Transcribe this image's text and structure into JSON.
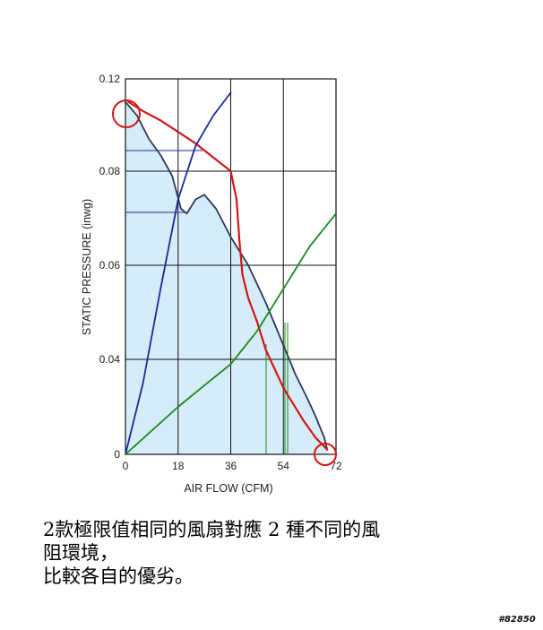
{
  "chart_data": {
    "type": "line",
    "xlabel": "AIR FLOW (CFM)",
    "ylabel": "STATIC PRESSURE (inwg)",
    "x_ticks": [
      "0",
      "18",
      "36",
      "54",
      "72"
    ],
    "y_ticks": [
      "0",
      "0.04",
      "0.06",
      "0.08",
      "0.12"
    ],
    "xlim": [
      0,
      72
    ],
    "ylim": [
      0,
      0.12
    ],
    "grid": true,
    "series": [
      {
        "color": "#2a3a55",
        "fill": "#d6ecf8",
        "points": [
          [
            0,
            0.11
          ],
          [
            4,
            0.104
          ],
          [
            8,
            0.094
          ],
          [
            12,
            0.087
          ],
          [
            16,
            0.079
          ],
          [
            19,
            0.072
          ],
          [
            21,
            0.071
          ],
          [
            24,
            0.074
          ],
          [
            27,
            0.075
          ],
          [
            31,
            0.072
          ],
          [
            36,
            0.066
          ],
          [
            42,
            0.06
          ],
          [
            48,
            0.052
          ],
          [
            54,
            0.043
          ],
          [
            58,
            0.034
          ],
          [
            62,
            0.024
          ],
          [
            65,
            0.016
          ],
          [
            68,
            0.007
          ],
          [
            69,
            0.002
          ]
        ]
      },
      {
        "color": "#d01818",
        "points": [
          [
            1,
            0.11
          ],
          [
            6,
            0.106
          ],
          [
            12,
            0.102
          ],
          [
            18,
            0.097
          ],
          [
            24,
            0.092
          ],
          [
            30,
            0.086
          ],
          [
            36,
            0.08
          ],
          [
            38,
            0.074
          ],
          [
            39,
            0.065
          ],
          [
            40,
            0.058
          ],
          [
            42,
            0.053
          ],
          [
            45,
            0.048
          ],
          [
            48,
            0.042
          ],
          [
            51,
            0.036
          ],
          [
            54,
            0.028
          ],
          [
            57,
            0.022
          ],
          [
            61,
            0.014
          ],
          [
            65,
            0.007
          ],
          [
            69,
            0.002
          ]
        ]
      },
      {
        "color": "#1a2a9a",
        "points": [
          [
            0,
            0.0
          ],
          [
            6,
            0.03
          ],
          [
            12,
            0.055
          ],
          [
            18,
            0.074
          ],
          [
            24,
            0.091
          ],
          [
            30,
            0.104
          ],
          [
            36,
            0.114
          ]
        ]
      },
      {
        "color": "#1a8a1a",
        "points": [
          [
            0,
            0.0
          ],
          [
            9,
            0.01
          ],
          [
            18,
            0.02
          ],
          [
            27,
            0.029
          ],
          [
            36,
            0.038
          ],
          [
            45,
            0.046
          ],
          [
            54,
            0.055
          ],
          [
            63,
            0.064
          ],
          [
            72,
            0.071
          ]
        ]
      }
    ]
  },
  "caption": {
    "line1": "2款極限值相同的風扇對應 2 種不同的風",
    "line2": "阻環境，",
    "line3": "比較各自的優劣。"
  },
  "watermark": "#82850"
}
